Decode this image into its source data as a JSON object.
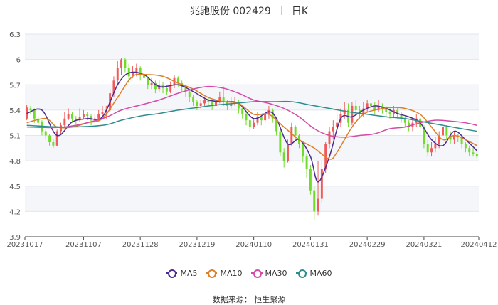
{
  "title": {
    "name": "兆驰股份 002429",
    "period": "日K"
  },
  "source": "数据来源： 恒生聚源",
  "chart_data": {
    "type": "candlestick",
    "ylim": [
      3.9,
      6.3
    ],
    "yticks": [
      3.9,
      4.2,
      4.5,
      4.8,
      5.1,
      5.4,
      5.7,
      6,
      6.3
    ],
    "x_tick_labels": [
      "20231017",
      "20231107",
      "20231128",
      "20231219",
      "20240110",
      "20240131",
      "20240229",
      "20240321",
      "20240412"
    ],
    "x_tick_index": [
      0,
      15,
      30,
      45,
      60,
      75,
      90,
      105,
      119
    ],
    "colors": {
      "up": "#f05a5a",
      "down": "#6fdc2a"
    },
    "candles": [
      [
        5.3,
        5.43,
        5.28,
        5.46
      ],
      [
        5.42,
        5.4,
        5.35,
        5.45
      ],
      [
        5.4,
        5.3,
        5.25,
        5.42
      ],
      [
        5.3,
        5.25,
        5.2,
        5.33
      ],
      [
        5.26,
        5.15,
        5.1,
        5.28
      ],
      [
        5.15,
        5.1,
        5.05,
        5.18
      ],
      [
        5.1,
        5.02,
        4.98,
        5.12
      ],
      [
        5.02,
        4.98,
        4.95,
        5.06
      ],
      [
        4.98,
        5.15,
        4.97,
        5.17
      ],
      [
        5.15,
        5.22,
        5.12,
        5.25
      ],
      [
        5.22,
        5.3,
        5.2,
        5.38
      ],
      [
        5.3,
        5.35,
        5.28,
        5.42
      ],
      [
        5.35,
        5.3,
        5.25,
        5.38
      ],
      [
        5.3,
        5.28,
        5.24,
        5.33
      ],
      [
        5.28,
        5.32,
        5.26,
        5.42
      ],
      [
        5.32,
        5.35,
        5.3,
        5.4
      ],
      [
        5.35,
        5.33,
        5.28,
        5.38
      ],
      [
        5.33,
        5.28,
        5.22,
        5.35
      ],
      [
        5.28,
        5.3,
        5.25,
        5.36
      ],
      [
        5.3,
        5.35,
        5.28,
        5.4
      ],
      [
        5.35,
        5.38,
        5.32,
        5.45
      ],
      [
        5.38,
        5.4,
        5.3,
        5.45
      ],
      [
        5.4,
        5.6,
        5.38,
        5.65
      ],
      [
        5.6,
        5.75,
        5.55,
        5.8
      ],
      [
        5.75,
        5.9,
        5.7,
        5.98
      ],
      [
        5.9,
        6.0,
        5.82,
        6.02
      ],
      [
        6.0,
        5.9,
        5.85,
        6.02
      ],
      [
        5.9,
        5.8,
        5.72,
        5.95
      ],
      [
        5.8,
        5.85,
        5.78,
        5.92
      ],
      [
        5.85,
        5.9,
        5.8,
        5.95
      ],
      [
        5.9,
        5.82,
        5.75,
        5.92
      ],
      [
        5.82,
        5.78,
        5.7,
        5.85
      ],
      [
        5.78,
        5.7,
        5.65,
        5.8
      ],
      [
        5.7,
        5.72,
        5.65,
        5.78
      ],
      [
        5.72,
        5.65,
        5.6,
        5.75
      ],
      [
        5.65,
        5.7,
        5.62,
        5.76
      ],
      [
        5.7,
        5.66,
        5.6,
        5.73
      ],
      [
        5.66,
        5.62,
        5.58,
        5.7
      ],
      [
        5.62,
        5.7,
        5.6,
        5.74
      ],
      [
        5.7,
        5.78,
        5.66,
        5.82
      ],
      [
        5.78,
        5.72,
        5.68,
        5.8
      ],
      [
        5.72,
        5.68,
        5.62,
        5.75
      ],
      [
        5.68,
        5.62,
        5.56,
        5.7
      ],
      [
        5.62,
        5.55,
        5.5,
        5.65
      ],
      [
        5.55,
        5.5,
        5.45,
        5.58
      ],
      [
        5.5,
        5.45,
        5.4,
        5.52
      ],
      [
        5.45,
        5.48,
        5.42,
        5.52
      ],
      [
        5.48,
        5.52,
        5.45,
        5.56
      ],
      [
        5.52,
        5.5,
        5.44,
        5.55
      ],
      [
        5.5,
        5.45,
        5.4,
        5.52
      ],
      [
        5.45,
        5.5,
        5.43,
        5.58
      ],
      [
        5.5,
        5.55,
        5.48,
        5.62
      ],
      [
        5.55,
        5.5,
        5.45,
        5.68
      ],
      [
        5.5,
        5.45,
        5.4,
        5.52
      ],
      [
        5.45,
        5.48,
        5.42,
        5.55
      ],
      [
        5.48,
        5.5,
        5.45,
        5.56
      ],
      [
        5.5,
        5.42,
        5.36,
        5.52
      ],
      [
        5.42,
        5.35,
        5.3,
        5.45
      ],
      [
        5.35,
        5.28,
        5.22,
        5.38
      ],
      [
        5.28,
        5.2,
        5.15,
        5.3
      ],
      [
        5.2,
        5.25,
        5.18,
        5.3
      ],
      [
        5.25,
        5.32,
        5.22,
        5.38
      ],
      [
        5.32,
        5.28,
        5.22,
        5.35
      ],
      [
        5.28,
        5.35,
        5.25,
        5.42
      ],
      [
        5.35,
        5.4,
        5.3,
        5.45
      ],
      [
        5.4,
        5.3,
        5.25,
        5.42
      ],
      [
        5.3,
        5.15,
        5.1,
        5.32
      ],
      [
        5.15,
        4.9,
        4.85,
        5.18
      ],
      [
        4.9,
        4.8,
        4.72,
        4.95
      ],
      [
        4.8,
        5.0,
        4.78,
        5.05
      ],
      [
        5.0,
        5.2,
        4.98,
        5.25
      ],
      [
        5.2,
        5.1,
        5.05,
        5.22
      ],
      [
        5.1,
        5.0,
        4.95,
        5.12
      ],
      [
        5.0,
        4.85,
        4.78,
        5.02
      ],
      [
        4.85,
        4.7,
        4.6,
        4.88
      ],
      [
        4.7,
        4.45,
        4.4,
        4.75
      ],
      [
        4.45,
        4.2,
        4.1,
        4.5
      ],
      [
        4.2,
        4.35,
        4.15,
        4.8
      ],
      [
        4.35,
        4.7,
        4.3,
        4.8
      ],
      [
        4.7,
        5.0,
        4.65,
        5.02
      ],
      [
        5.0,
        5.15,
        4.95,
        5.2
      ],
      [
        5.15,
        5.2,
        5.05,
        5.28
      ],
      [
        5.2,
        5.25,
        5.15,
        5.35
      ],
      [
        5.25,
        5.35,
        5.2,
        5.42
      ],
      [
        5.35,
        5.4,
        5.3,
        5.5
      ],
      [
        5.4,
        5.25,
        5.2,
        5.48
      ],
      [
        5.25,
        5.45,
        5.22,
        5.5
      ],
      [
        5.45,
        5.4,
        5.35,
        5.52
      ],
      [
        5.4,
        5.35,
        5.3,
        5.45
      ],
      [
        5.35,
        5.42,
        5.32,
        5.5
      ],
      [
        5.42,
        5.48,
        5.38,
        5.52
      ],
      [
        5.48,
        5.45,
        5.4,
        5.55
      ],
      [
        5.45,
        5.4,
        5.35,
        5.5
      ],
      [
        5.4,
        5.45,
        5.38,
        5.52
      ],
      [
        5.45,
        5.42,
        5.36,
        5.48
      ],
      [
        5.42,
        5.38,
        5.32,
        5.45
      ],
      [
        5.38,
        5.35,
        5.3,
        5.42
      ],
      [
        5.35,
        5.4,
        5.32,
        5.45
      ],
      [
        5.4,
        5.35,
        5.3,
        5.44
      ],
      [
        5.35,
        5.3,
        5.25,
        5.38
      ],
      [
        5.3,
        5.25,
        5.2,
        5.33
      ],
      [
        5.25,
        5.2,
        5.15,
        5.28
      ],
      [
        5.2,
        5.25,
        5.15,
        5.3
      ],
      [
        5.25,
        5.3,
        5.2,
        5.35
      ],
      [
        5.3,
        5.2,
        5.12,
        5.32
      ],
      [
        5.2,
        5.0,
        4.95,
        5.22
      ],
      [
        5.0,
        4.9,
        4.85,
        5.05
      ],
      [
        4.9,
        4.95,
        4.85,
        5.02
      ],
      [
        4.95,
        5.0,
        4.9,
        5.08
      ],
      [
        5.0,
        5.1,
        4.95,
        5.15
      ],
      [
        5.1,
        5.2,
        5.05,
        5.25
      ],
      [
        5.2,
        5.1,
        5.05,
        5.22
      ],
      [
        5.1,
        5.05,
        5.0,
        5.15
      ],
      [
        5.05,
        5.1,
        5.0,
        5.15
      ],
      [
        5.1,
        5.08,
        5.02,
        5.12
      ],
      [
        5.08,
        5.0,
        4.95,
        5.1
      ],
      [
        5.0,
        4.95,
        4.9,
        5.02
      ],
      [
        4.95,
        4.9,
        4.86,
        4.98
      ],
      [
        4.9,
        4.88,
        4.85,
        4.95
      ],
      [
        4.88,
        4.85,
        4.82,
        4.92
      ]
    ],
    "series": [
      {
        "name": "MA5",
        "color": "#4b2c8f",
        "points": [
          [
            0,
            5.36
          ],
          [
            4,
            5.4
          ],
          [
            8,
            5.1
          ],
          [
            12,
            5.26
          ],
          [
            16,
            5.3
          ],
          [
            20,
            5.32
          ],
          [
            24,
            5.7
          ],
          [
            27,
            5.84
          ],
          [
            31,
            5.82
          ],
          [
            35,
            5.68
          ],
          [
            40,
            5.7
          ],
          [
            44,
            5.62
          ],
          [
            48,
            5.52
          ],
          [
            52,
            5.5
          ],
          [
            56,
            5.48
          ],
          [
            60,
            5.3
          ],
          [
            64,
            5.38
          ],
          [
            66,
            5.3
          ],
          [
            69,
            5.0
          ],
          [
            72,
            5.05
          ],
          [
            75,
            4.85
          ],
          [
            77,
            4.55
          ],
          [
            80,
            4.85
          ],
          [
            83,
            5.3
          ],
          [
            86,
            5.32
          ],
          [
            89,
            5.4
          ],
          [
            92,
            5.45
          ],
          [
            95,
            5.42
          ],
          [
            98,
            5.36
          ],
          [
            101,
            5.32
          ],
          [
            104,
            5.25
          ],
          [
            107,
            5.05
          ],
          [
            110,
            4.98
          ],
          [
            113,
            5.15
          ],
          [
            116,
            5.05
          ],
          [
            119,
            4.92
          ]
        ]
      },
      {
        "name": "MA10",
        "color": "#e07d27",
        "points": [
          [
            0,
            5.25
          ],
          [
            5,
            5.3
          ],
          [
            8,
            5.2
          ],
          [
            12,
            5.2
          ],
          [
            16,
            5.25
          ],
          [
            20,
            5.3
          ],
          [
            24,
            5.55
          ],
          [
            28,
            5.8
          ],
          [
            32,
            5.82
          ],
          [
            36,
            5.8
          ],
          [
            40,
            5.72
          ],
          [
            44,
            5.65
          ],
          [
            48,
            5.55
          ],
          [
            52,
            5.5
          ],
          [
            56,
            5.48
          ],
          [
            60,
            5.35
          ],
          [
            64,
            5.35
          ],
          [
            68,
            5.2
          ],
          [
            72,
            5.05
          ],
          [
            76,
            4.95
          ],
          [
            80,
            4.82
          ],
          [
            82,
            4.9
          ],
          [
            86,
            5.2
          ],
          [
            89,
            5.35
          ],
          [
            92,
            5.4
          ],
          [
            96,
            5.43
          ],
          [
            100,
            5.42
          ],
          [
            104,
            5.35
          ],
          [
            107,
            5.2
          ],
          [
            110,
            5.05
          ],
          [
            113,
            5.1
          ],
          [
            116,
            5.05
          ],
          [
            119,
            4.98
          ]
        ]
      },
      {
        "name": "MA30",
        "color": "#d44aa6",
        "points": [
          [
            0,
            5.2
          ],
          [
            10,
            5.2
          ],
          [
            20,
            5.3
          ],
          [
            25,
            5.4
          ],
          [
            30,
            5.46
          ],
          [
            35,
            5.52
          ],
          [
            40,
            5.6
          ],
          [
            44,
            5.65
          ],
          [
            48,
            5.68
          ],
          [
            52,
            5.66
          ],
          [
            56,
            5.6
          ],
          [
            60,
            5.52
          ],
          [
            64,
            5.48
          ],
          [
            68,
            5.42
          ],
          [
            72,
            5.32
          ],
          [
            76,
            5.18
          ],
          [
            80,
            5.1
          ],
          [
            84,
            5.08
          ],
          [
            88,
            5.1
          ],
          [
            92,
            5.12
          ],
          [
            96,
            5.18
          ],
          [
            100,
            5.2
          ],
          [
            104,
            5.25
          ],
          [
            108,
            5.28
          ],
          [
            112,
            5.27
          ],
          [
            116,
            5.25
          ],
          [
            119,
            5.22
          ]
        ]
      },
      {
        "name": "MA60",
        "color": "#2f8c8c",
        "points": [
          [
            0,
            5.22
          ],
          [
            10,
            5.2
          ],
          [
            20,
            5.22
          ],
          [
            25,
            5.28
          ],
          [
            30,
            5.33
          ],
          [
            35,
            5.36
          ],
          [
            40,
            5.4
          ],
          [
            45,
            5.43
          ],
          [
            50,
            5.46
          ],
          [
            55,
            5.48
          ],
          [
            60,
            5.5
          ],
          [
            65,
            5.5
          ],
          [
            70,
            5.5
          ],
          [
            75,
            5.46
          ],
          [
            80,
            5.42
          ],
          [
            85,
            5.38
          ],
          [
            90,
            5.35
          ],
          [
            95,
            5.32
          ],
          [
            100,
            5.3
          ],
          [
            105,
            5.26
          ],
          [
            110,
            5.22
          ],
          [
            115,
            5.18
          ],
          [
            119,
            5.15
          ]
        ]
      }
    ]
  }
}
